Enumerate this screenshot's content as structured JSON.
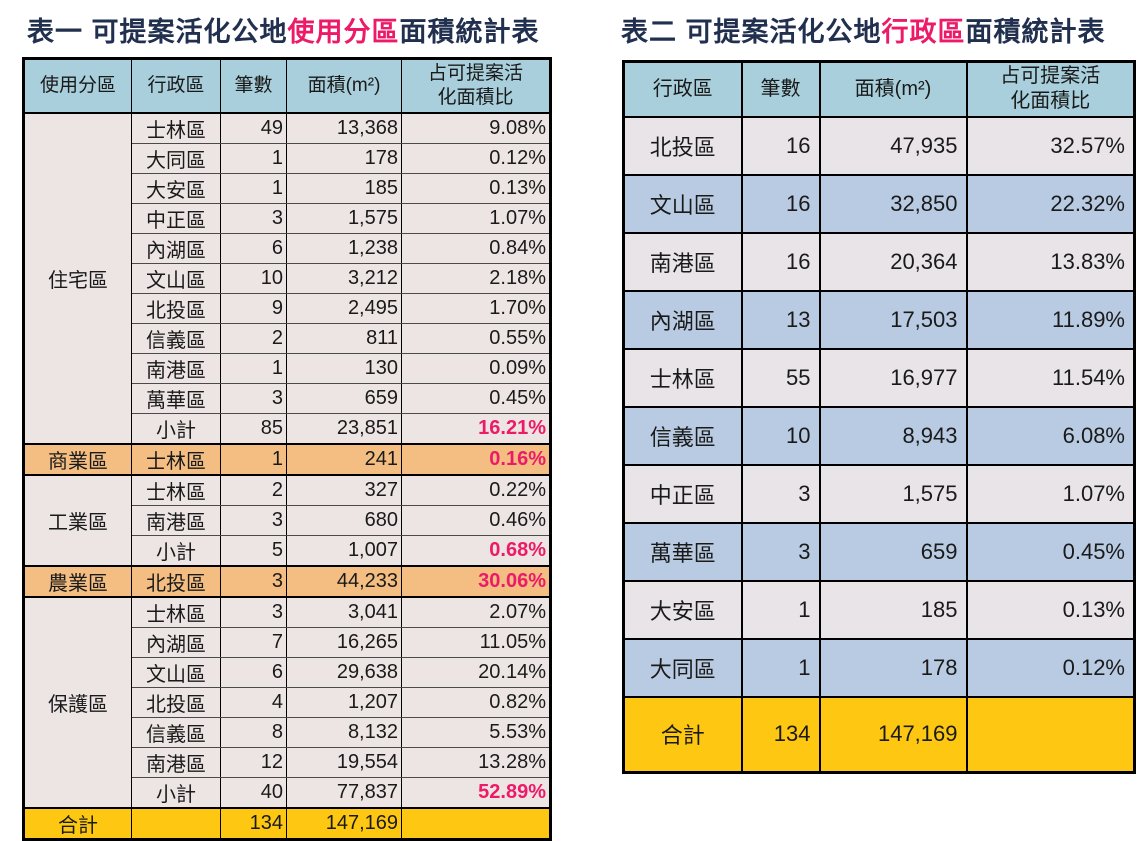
{
  "colors": {
    "title_navy": "#22304f",
    "highlight_pink": "#ed1a68",
    "header_teal": "#a8cfdb",
    "table1_row_bg": "#ede5e4",
    "orange_row": "#f4be83",
    "total_yellow": "#fdc712",
    "table2_row_gray": "#e8e4e8",
    "table2_row_blue": "#b9cbe2",
    "border_black": "#000000"
  },
  "table1": {
    "title_prefix": "表一 可提案活化公地",
    "title_highlight": "使用分區",
    "title_suffix": "面積統計表",
    "headers": [
      "使用分區",
      "行政區",
      "筆數",
      "面積(m²)",
      "占可提案活\n化面積比"
    ],
    "groups": [
      {
        "zone": "住宅區",
        "style": "normal",
        "rows": [
          {
            "district": "士林區",
            "count": "49",
            "area": "13,368",
            "pct": "9.08%",
            "pct_pink": false
          },
          {
            "district": "大同區",
            "count": "1",
            "area": "178",
            "pct": "0.12%",
            "pct_pink": false
          },
          {
            "district": "大安區",
            "count": "1",
            "area": "185",
            "pct": "0.13%",
            "pct_pink": false
          },
          {
            "district": "中正區",
            "count": "3",
            "area": "1,575",
            "pct": "1.07%",
            "pct_pink": false
          },
          {
            "district": "內湖區",
            "count": "6",
            "area": "1,238",
            "pct": "0.84%",
            "pct_pink": false
          },
          {
            "district": "文山區",
            "count": "10",
            "area": "3,212",
            "pct": "2.18%",
            "pct_pink": false
          },
          {
            "district": "北投區",
            "count": "9",
            "area": "2,495",
            "pct": "1.70%",
            "pct_pink": false
          },
          {
            "district": "信義區",
            "count": "2",
            "area": "811",
            "pct": "0.55%",
            "pct_pink": false
          },
          {
            "district": "南港區",
            "count": "1",
            "area": "130",
            "pct": "0.09%",
            "pct_pink": false
          },
          {
            "district": "萬華區",
            "count": "3",
            "area": "659",
            "pct": "0.45%",
            "pct_pink": false
          },
          {
            "district": "小計",
            "count": "85",
            "area": "23,851",
            "pct": "16.21%",
            "pct_pink": true
          }
        ]
      },
      {
        "zone": "商業區",
        "style": "orange",
        "rows": [
          {
            "district": "士林區",
            "count": "1",
            "area": "241",
            "pct": "0.16%",
            "pct_pink": true
          }
        ]
      },
      {
        "zone": "工業區",
        "style": "normal",
        "rows": [
          {
            "district": "士林區",
            "count": "2",
            "area": "327",
            "pct": "0.22%",
            "pct_pink": false
          },
          {
            "district": "南港區",
            "count": "3",
            "area": "680",
            "pct": "0.46%",
            "pct_pink": false
          },
          {
            "district": "小計",
            "count": "5",
            "area": "1,007",
            "pct": "0.68%",
            "pct_pink": true
          }
        ]
      },
      {
        "zone": "農業區",
        "style": "orange",
        "rows": [
          {
            "district": "北投區",
            "count": "3",
            "area": "44,233",
            "pct": "30.06%",
            "pct_pink": true
          }
        ]
      },
      {
        "zone": "保護區",
        "style": "normal",
        "rows": [
          {
            "district": "士林區",
            "count": "3",
            "area": "3,041",
            "pct": "2.07%",
            "pct_pink": false
          },
          {
            "district": "內湖區",
            "count": "7",
            "area": "16,265",
            "pct": "11.05%",
            "pct_pink": false
          },
          {
            "district": "文山區",
            "count": "6",
            "area": "29,638",
            "pct": "20.14%",
            "pct_pink": false
          },
          {
            "district": "北投區",
            "count": "4",
            "area": "1,207",
            "pct": "0.82%",
            "pct_pink": false
          },
          {
            "district": "信義區",
            "count": "8",
            "area": "8,132",
            "pct": "5.53%",
            "pct_pink": false
          },
          {
            "district": "南港區",
            "count": "12",
            "area": "19,554",
            "pct": "13.28%",
            "pct_pink": false
          },
          {
            "district": "小計",
            "count": "40",
            "area": "77,837",
            "pct": "52.89%",
            "pct_pink": true
          }
        ]
      }
    ],
    "total": {
      "zone": "合計",
      "district": "",
      "count": "134",
      "area": "147,169",
      "pct": ""
    }
  },
  "table2": {
    "title_prefix": "表二 可提案活化公地",
    "title_highlight": "行政區",
    "title_suffix": "面積統計表",
    "headers": [
      "行政區",
      "筆數",
      "面積(m²)",
      "占可提案活\n化面積比"
    ],
    "rows": [
      {
        "district": "北投區",
        "count": "16",
        "area": "47,935",
        "pct": "32.57%"
      },
      {
        "district": "文山區",
        "count": "16",
        "area": "32,850",
        "pct": "22.32%"
      },
      {
        "district": "南港區",
        "count": "16",
        "area": "20,364",
        "pct": "13.83%"
      },
      {
        "district": "內湖區",
        "count": "13",
        "area": "17,503",
        "pct": "11.89%"
      },
      {
        "district": "士林區",
        "count": "55",
        "area": "16,977",
        "pct": "11.54%"
      },
      {
        "district": "信義區",
        "count": "10",
        "area": "8,943",
        "pct": "6.08%"
      },
      {
        "district": "中正區",
        "count": "3",
        "area": "1,575",
        "pct": "1.07%"
      },
      {
        "district": "萬華區",
        "count": "3",
        "area": "659",
        "pct": "0.45%"
      },
      {
        "district": "大安區",
        "count": "1",
        "area": "185",
        "pct": "0.13%"
      },
      {
        "district": "大同區",
        "count": "1",
        "area": "178",
        "pct": "0.12%"
      }
    ],
    "total": {
      "district": "合計",
      "count": "134",
      "area": "147,169",
      "pct": ""
    }
  }
}
